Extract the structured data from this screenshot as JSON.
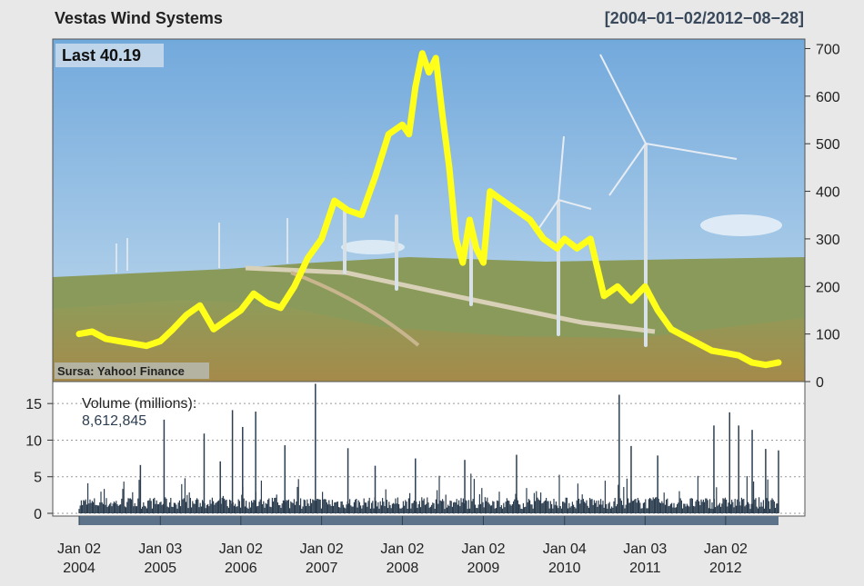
{
  "title": "Vestas Wind Systems",
  "date_range": "[2004−01−02/2012−08−28]",
  "last_label": "Last 40.19",
  "source_label": "Sursa: Yahoo! Finance",
  "volume_label": "Volume (millions):",
  "volume_value": "8,612,845",
  "colors": {
    "price": "#ffff1a",
    "volume": "#2c3e50",
    "sky_top": "#7fb2de",
    "sky_bottom": "#b9d6ee",
    "hill": "#8a9a55",
    "grass": "#7d8c3e"
  },
  "chart_data": [
    {
      "type": "line",
      "series": [
        {
          "x": [
            "2004-01-02",
            "2004-03-01",
            "2004-05-01",
            "2004-07-01",
            "2004-09-01",
            "2004-11-01",
            "2005-01-03",
            "2005-03-01",
            "2005-05-01",
            "2005-07-01",
            "2005-09-01",
            "2005-11-01",
            "2006-01-02",
            "2006-03-01",
            "2006-05-01",
            "2006-07-01",
            "2006-09-01",
            "2006-11-01",
            "2007-01-02",
            "2007-03-01",
            "2007-05-01",
            "2007-07-01",
            "2007-09-01",
            "2007-11-01",
            "2008-01-02",
            "2008-02-01",
            "2008-03-01",
            "2008-04-01",
            "2008-05-01",
            "2008-06-01",
            "2008-07-01",
            "2008-08-01",
            "2008-09-01",
            "2008-10-01",
            "2008-11-01",
            "2008-12-01",
            "2009-01-02",
            "2009-02-01",
            "2009-03-01",
            "2009-04-01",
            "2009-06-01",
            "2009-08-01",
            "2009-10-01",
            "2009-12-01",
            "2010-01-04",
            "2010-03-01",
            "2010-05-01",
            "2010-07-01",
            "2010-09-01",
            "2010-11-01",
            "2011-01-03",
            "2011-03-01",
            "2011-05-01",
            "2011-07-01",
            "2011-09-01",
            "2011-11-01",
            "2012-01-02",
            "2012-03-01",
            "2012-05-01",
            "2012-07-01",
            "2012-08-28"
          ],
          "y": [
            100,
            105,
            90,
            85,
            80,
            75,
            85,
            110,
            140,
            160,
            110,
            130,
            150,
            185,
            165,
            155,
            200,
            260,
            300,
            380,
            360,
            350,
            430,
            520,
            540,
            520,
            620,
            690,
            650,
            680,
            560,
            450,
            300,
            250,
            340,
            280,
            250,
            400,
            390,
            380,
            360,
            340,
            300,
            280,
            300,
            280,
            300,
            180,
            200,
            170,
            200,
            150,
            110,
            95,
            80,
            65,
            60,
            55,
            40,
            35,
            40.19
          ]
        }
      ],
      "ylim": [
        0,
        720
      ],
      "yticks": [
        0,
        100,
        200,
        300,
        400,
        500,
        600,
        700
      ],
      "grid": false
    },
    {
      "type": "bar",
      "ylabel": "Volume (millions):",
      "ylim": [
        0,
        18
      ],
      "yticks": [
        0,
        5,
        10,
        15
      ],
      "spikes": [
        {
          "x": "2005-01-20",
          "y": 12.8
        },
        {
          "x": "2004-10-05",
          "y": 6.6
        },
        {
          "x": "2005-07-20",
          "y": 10.9
        },
        {
          "x": "2005-10-01",
          "y": 7.1
        },
        {
          "x": "2005-11-25",
          "y": 14.1
        },
        {
          "x": "2006-01-10",
          "y": 11.8
        },
        {
          "x": "2006-03-10",
          "y": 13.9
        },
        {
          "x": "2006-07-20",
          "y": 9.3
        },
        {
          "x": "2006-12-05",
          "y": 17.7
        },
        {
          "x": "2007-05-01",
          "y": 8.9
        },
        {
          "x": "2007-09-01",
          "y": 6.5
        },
        {
          "x": "2008-03-01",
          "y": 7.5
        },
        {
          "x": "2008-10-10",
          "y": 7.3
        },
        {
          "x": "2009-06-01",
          "y": 8.0
        },
        {
          "x": "2010-09-08",
          "y": 16.2
        },
        {
          "x": "2010-11-01",
          "y": 9.2
        },
        {
          "x": "2011-03-01",
          "y": 7.9
        },
        {
          "x": "2011-11-10",
          "y": 12.0
        },
        {
          "x": "2012-01-20",
          "y": 13.8
        },
        {
          "x": "2012-03-01",
          "y": 12.0
        },
        {
          "x": "2012-05-01",
          "y": 11.4
        },
        {
          "x": "2012-07-01",
          "y": 8.8
        },
        {
          "x": "2012-08-28",
          "y": 8.6
        }
      ]
    }
  ],
  "x_ticks": [
    {
      "date": "2004-01-02",
      "l1": "Jan 02",
      "l2": "2004"
    },
    {
      "date": "2005-01-03",
      "l1": "Jan 03",
      "l2": "2005"
    },
    {
      "date": "2006-01-02",
      "l1": "Jan 02",
      "l2": "2006"
    },
    {
      "date": "2007-01-02",
      "l1": "Jan 02",
      "l2": "2007"
    },
    {
      "date": "2008-01-02",
      "l1": "Jan 02",
      "l2": "2008"
    },
    {
      "date": "2009-01-02",
      "l1": "Jan 02",
      "l2": "2009"
    },
    {
      "date": "2010-01-04",
      "l1": "Jan 04",
      "l2": "2010"
    },
    {
      "date": "2011-01-03",
      "l1": "Jan 03",
      "l2": "2011"
    },
    {
      "date": "2012-01-02",
      "l1": "Jan 02",
      "l2": "2012"
    }
  ]
}
